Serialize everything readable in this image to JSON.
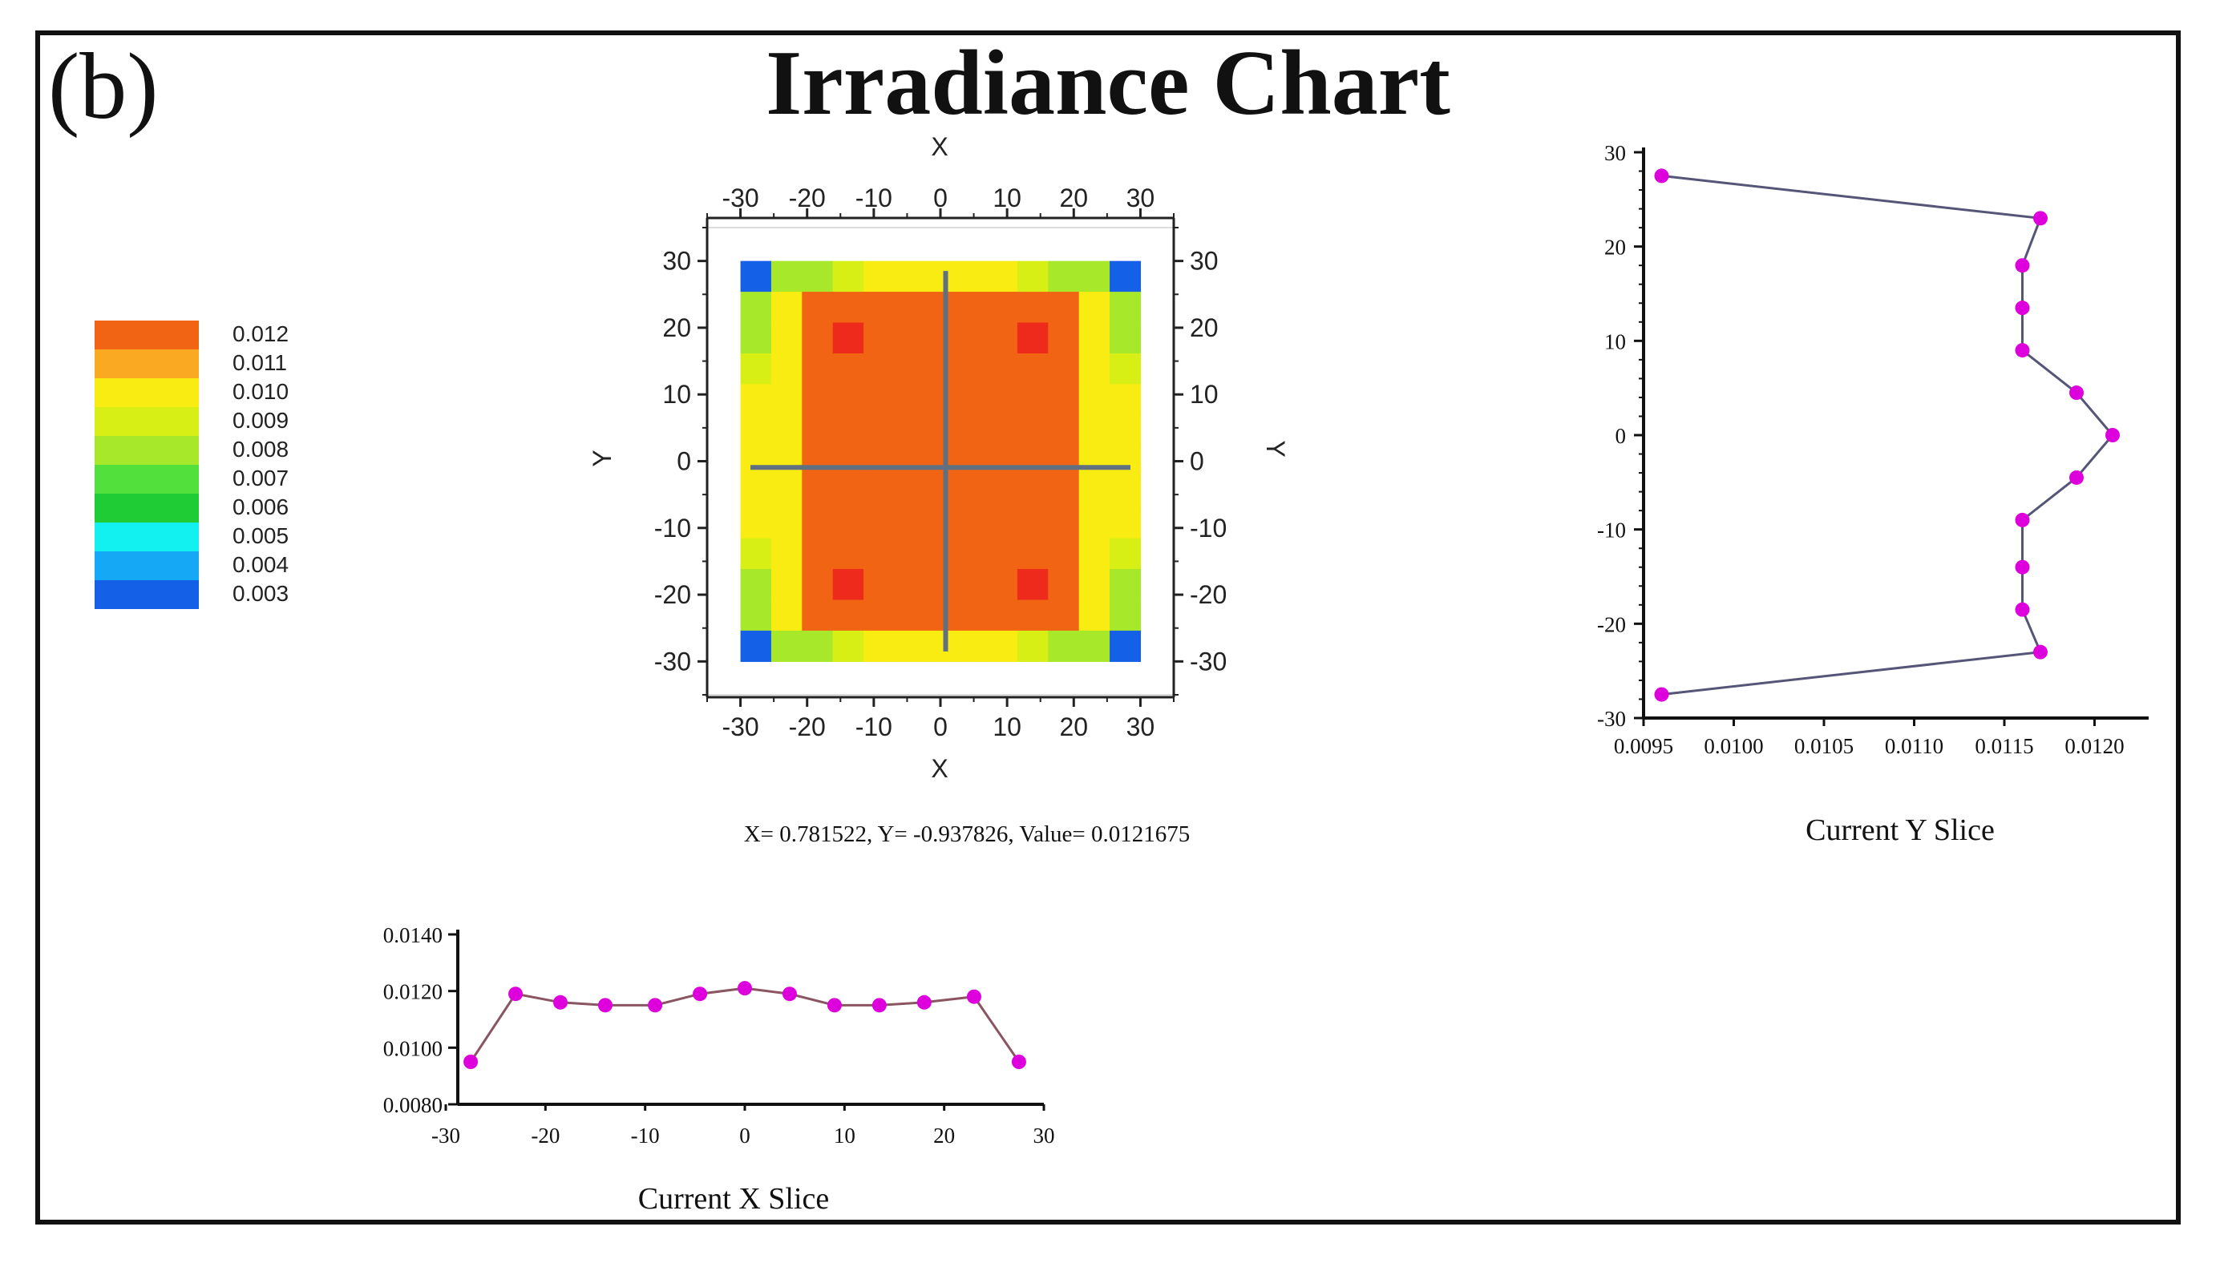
{
  "panel_label": "(b)",
  "title": "Irradiance Chart",
  "colors": {
    "frame": "#111111",
    "line": "#555577",
    "marker": "#dd00dd",
    "crosshair": "#607080"
  },
  "readout": "X= 0.781522, Y= -0.937826, Value= 0.0121675",
  "chart_data": [
    {
      "type": "heatmap",
      "name": "irradiance-map",
      "xlabel": "X",
      "ylabel": "Y",
      "xlim": [
        -35,
        35
      ],
      "ylim": [
        -35,
        35
      ],
      "grid_extent": [
        -30,
        30
      ],
      "grid_size": 13,
      "xticks": [
        "-30",
        "-20",
        "-10",
        "0",
        "10",
        "20",
        "30"
      ],
      "yticks": [
        "30",
        "20",
        "10",
        "0",
        "-10",
        "-20",
        "-30"
      ],
      "tick_values": [
        -30,
        -20,
        -10,
        0,
        10,
        20,
        30
      ],
      "crosshair": [
        0.781522,
        -0.937826
      ],
      "values": [
        [
          0.003,
          0.0075,
          0.008,
          0.009,
          0.0098,
          0.01,
          0.01,
          0.01,
          0.0098,
          0.009,
          0.008,
          0.0075,
          0.003
        ],
        [
          0.0075,
          0.01,
          0.0119,
          0.0119,
          0.0119,
          0.0119,
          0.0119,
          0.0119,
          0.0119,
          0.0119,
          0.0119,
          0.01,
          0.0075
        ],
        [
          0.008,
          0.01,
          0.0119,
          0.0125,
          0.0119,
          0.0119,
          0.0119,
          0.0119,
          0.0119,
          0.0125,
          0.0119,
          0.01,
          0.008
        ],
        [
          0.009,
          0.01,
          0.0119,
          0.0119,
          0.0119,
          0.0119,
          0.0119,
          0.0119,
          0.0119,
          0.0119,
          0.0119,
          0.01,
          0.009
        ],
        [
          0.0095,
          0.01,
          0.0119,
          0.0119,
          0.0119,
          0.0119,
          0.0119,
          0.0119,
          0.0119,
          0.0119,
          0.0119,
          0.01,
          0.0095
        ],
        [
          0.0095,
          0.01,
          0.0119,
          0.0119,
          0.0119,
          0.0119,
          0.0119,
          0.0119,
          0.0119,
          0.0119,
          0.0119,
          0.01,
          0.0095
        ],
        [
          0.0095,
          0.01,
          0.0119,
          0.0119,
          0.0119,
          0.0119,
          0.0119,
          0.0119,
          0.0119,
          0.0119,
          0.0119,
          0.01,
          0.0095
        ],
        [
          0.0095,
          0.01,
          0.0119,
          0.0119,
          0.0119,
          0.0119,
          0.0119,
          0.0119,
          0.0119,
          0.0119,
          0.0119,
          0.01,
          0.0095
        ],
        [
          0.0095,
          0.01,
          0.0119,
          0.0119,
          0.0119,
          0.0119,
          0.0119,
          0.0119,
          0.0119,
          0.0119,
          0.0119,
          0.01,
          0.0095
        ],
        [
          0.009,
          0.01,
          0.0119,
          0.0119,
          0.0119,
          0.0119,
          0.0119,
          0.0119,
          0.0119,
          0.0119,
          0.0119,
          0.01,
          0.009
        ],
        [
          0.008,
          0.01,
          0.0119,
          0.0125,
          0.0119,
          0.0119,
          0.0119,
          0.0119,
          0.0119,
          0.0125,
          0.0119,
          0.01,
          0.008
        ],
        [
          0.0075,
          0.01,
          0.0119,
          0.0119,
          0.0119,
          0.0119,
          0.0119,
          0.0119,
          0.0119,
          0.0119,
          0.0119,
          0.01,
          0.0075
        ],
        [
          0.003,
          0.0075,
          0.008,
          0.009,
          0.0098,
          0.01,
          0.01,
          0.01,
          0.0098,
          0.009,
          0.008,
          0.0075,
          0.003
        ]
      ]
    },
    {
      "type": "legend",
      "name": "color-scale",
      "labels": [
        "0.012",
        "0.011",
        "0.010",
        "0.009",
        "0.008",
        "0.007",
        "0.006",
        "0.005",
        "0.004",
        "0.003"
      ],
      "colors": [
        "#f06414",
        "#f9a922",
        "#f8ec12",
        "#d8ef16",
        "#a7e82a",
        "#52e03c",
        "#1fcc36",
        "#12f0f0",
        "#14a8f5",
        "#1460e6"
      ]
    },
    {
      "type": "line",
      "name": "current-y-slice",
      "title": "Current Y Slice",
      "orientation": "vertical",
      "x": [
        0.0096,
        0.0117,
        0.0116,
        0.0116,
        0.0116,
        0.0119,
        0.0121,
        0.0119,
        0.0116,
        0.0116,
        0.0116,
        0.0117,
        0.0096
      ],
      "y": [
        27.5,
        23,
        18,
        13.5,
        9,
        4.5,
        0,
        -4.5,
        -9,
        -14,
        -18.5,
        -23,
        -27.5
      ],
      "xlim": [
        0.0095,
        0.0123
      ],
      "ylim": [
        -30,
        30
      ],
      "xticks": [
        "0.0095",
        "0.0100",
        "0.0105",
        "0.0110",
        "0.0115",
        "0.0120"
      ],
      "xtick_values": [
        0.0095,
        0.01,
        0.0105,
        0.011,
        0.0115,
        0.012
      ],
      "yticks": [
        "30",
        "20",
        "10",
        "0",
        "-10",
        "-20",
        "-30"
      ],
      "ytick_values": [
        30,
        20,
        10,
        0,
        -10,
        -20,
        -30
      ]
    },
    {
      "type": "line",
      "name": "current-x-slice",
      "title": "Current X Slice",
      "orientation": "horizontal",
      "x": [
        -27.5,
        -23,
        -18.5,
        -14,
        -9,
        -4.5,
        0,
        4.5,
        9,
        13.5,
        18,
        23,
        27.5
      ],
      "y": [
        0.0095,
        0.0119,
        0.0116,
        0.0115,
        0.0115,
        0.0119,
        0.0121,
        0.0119,
        0.0115,
        0.0115,
        0.0116,
        0.0118,
        0.0095
      ],
      "xlim": [
        -30,
        30
      ],
      "ylim": [
        0.008,
        0.014
      ],
      "xticks": [
        "-30",
        "-20",
        "-10",
        "0",
        "10",
        "20",
        "30"
      ],
      "xtick_values": [
        -30,
        -20,
        -10,
        0,
        10,
        20,
        30
      ],
      "yticks": [
        "0.0140",
        "0.0120",
        "0.0100",
        "0.0080"
      ],
      "ytick_values": [
        0.014,
        0.012,
        0.01,
        0.008
      ]
    }
  ]
}
